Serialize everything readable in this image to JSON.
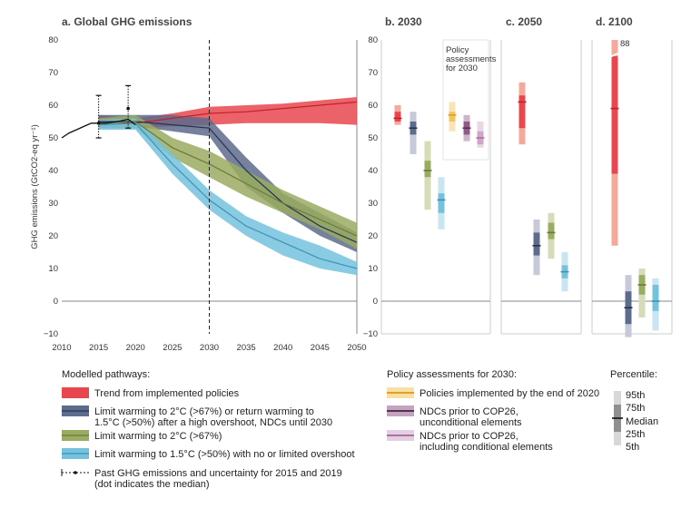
{
  "chart_data": {
    "type": "area",
    "colors": {
      "policies": "#e8474f",
      "policies_light": "#f5a99b",
      "overshoot": "#5d6b8c",
      "overshoot_light": "#c5c9d8",
      "c2": "#9aab62",
      "c2_light": "#d4dcb8",
      "c15": "#74c2dd",
      "c15_light": "#c8e6f1",
      "pol2020": "#f2c45e",
      "ndc_uncond": "#8e5b87",
      "ndc_cond": "#cfa6c8"
    },
    "panel_a": {
      "title": "a. Global GHG emissions",
      "ylabel": "GHG emissions (GtCO2-eq yr⁻¹)",
      "ylim": [
        -10,
        80
      ],
      "yticks": [
        "−10",
        "0",
        "10",
        "20",
        "30",
        "40",
        "50",
        "60",
        "70",
        "80"
      ],
      "xlim": [
        2010,
        2050
      ],
      "xticks": [
        "2010",
        "2015",
        "2020",
        "2025",
        "2030",
        "2035",
        "2040",
        "2045",
        "2050"
      ],
      "history": {
        "x": [
          2010,
          2011,
          2012,
          2013,
          2014,
          2015,
          2016,
          2017,
          2018,
          2019,
          2020
        ],
        "y": [
          50,
          51.5,
          52.5,
          53.5,
          54.5,
          54.5,
          54.5,
          54.8,
          55.2,
          55.7,
          54
        ]
      },
      "uncertainty": [
        {
          "year": 2015,
          "low": 50,
          "high": 63,
          "median": 54.5
        },
        {
          "year": 2019,
          "low": 53,
          "high": 66,
          "median": 59
        }
      ],
      "series": [
        {
          "key": "policies",
          "x": [
            2015,
            2020,
            2025,
            2030,
            2035,
            2040,
            2045,
            2050
          ],
          "median": [
            55,
            54.5,
            56,
            57.5,
            58,
            59,
            60,
            61
          ],
          "low": [
            53,
            53,
            53.5,
            54,
            54.5,
            54.5,
            54.5,
            54
          ],
          "high": [
            57,
            56,
            57.5,
            59.5,
            60,
            60.5,
            61.5,
            62.5
          ]
        },
        {
          "key": "overshoot",
          "x": [
            2015,
            2020,
            2025,
            2030,
            2035,
            2040,
            2045,
            2050
          ],
          "median": [
            55,
            55,
            54,
            53,
            40,
            30,
            23,
            18
          ],
          "low": [
            53,
            53.5,
            52,
            50.5,
            35,
            27,
            20,
            15
          ],
          "high": [
            57,
            57,
            57,
            56,
            44,
            33,
            27,
            21
          ]
        },
        {
          "key": "c2",
          "x": [
            2015,
            2020,
            2025,
            2030,
            2035,
            2040,
            2045,
            2050
          ],
          "median": [
            54.5,
            55,
            47,
            42,
            36,
            30,
            25,
            20
          ],
          "low": [
            53,
            53,
            44,
            38,
            32,
            27,
            22,
            16
          ],
          "high": [
            56,
            57,
            50,
            46,
            40,
            34,
            29,
            24
          ]
        },
        {
          "key": "c15",
          "x": [
            2015,
            2020,
            2025,
            2030,
            2035,
            2040,
            2045,
            2050
          ],
          "median": [
            54,
            54.5,
            42,
            31,
            23,
            18,
            13,
            10
          ],
          "low": [
            52.5,
            52.5,
            39,
            28,
            20,
            14,
            10,
            8
          ],
          "high": [
            55.5,
            56,
            45,
            34,
            26,
            21,
            17,
            12
          ]
        }
      ],
      "vline": 2030
    },
    "panel_b": {
      "title": "b. 2030",
      "ylim": [
        -10,
        80
      ],
      "yticks": [
        "−10",
        "0",
        "10",
        "20",
        "30",
        "40",
        "50",
        "60",
        "70",
        "80"
      ],
      "box_note": [
        "Policy",
        "assessments",
        "for 2030"
      ],
      "bars": [
        {
          "key": "policies",
          "p5": 54,
          "p25": 55,
          "median": 56,
          "p75": 58,
          "p95": 60
        },
        {
          "key": "overshoot",
          "p5": 45,
          "p25": 51,
          "median": 53,
          "p75": 55,
          "p95": 58
        },
        {
          "key": "c2",
          "p5": 28,
          "p25": 38,
          "median": 40,
          "p75": 43,
          "p95": 49
        },
        {
          "key": "c15",
          "p5": 22,
          "p25": 27,
          "median": 31,
          "p75": 33,
          "p95": 38
        },
        {
          "key": "pol2020",
          "p5": 52,
          "p25": 55,
          "median": 57,
          "p75": 58,
          "p95": 61
        },
        {
          "key": "ndc_uncond",
          "p5": 49,
          "p25": 51,
          "median": 53,
          "p75": 55,
          "p95": 57
        },
        {
          "key": "ndc_cond",
          "p5": 47,
          "p25": 48,
          "median": 50,
          "p75": 52,
          "p95": 55
        }
      ]
    },
    "panel_c": {
      "title": "c. 2050",
      "bars": [
        {
          "key": "policies",
          "p5": 48,
          "p25": 53,
          "median": 61,
          "p75": 63,
          "p95": 67
        },
        {
          "key": "overshoot",
          "p5": 8,
          "p25": 14,
          "median": 17,
          "p75": 21,
          "p95": 25
        },
        {
          "key": "c2",
          "p5": 13,
          "p25": 19,
          "median": 21,
          "p75": 24,
          "p95": 27
        },
        {
          "key": "c15",
          "p5": 3,
          "p25": 7,
          "median": 9,
          "p75": 11,
          "p95": 15
        }
      ]
    },
    "panel_d": {
      "title": "d. 2100",
      "break_label": "88",
      "bars": [
        {
          "key": "policies",
          "p5": 17,
          "p25": 39,
          "median": 59,
          "p75": 75,
          "p95": 88
        },
        {
          "key": "overshoot",
          "p5": -11,
          "p25": -7,
          "median": -2,
          "p75": 3,
          "p95": 8
        },
        {
          "key": "c2",
          "p5": -5,
          "p25": 2,
          "median": 5,
          "p75": 8,
          "p95": 10
        },
        {
          "key": "c15",
          "p5": -9,
          "p25": -3,
          "median": 0,
          "p75": 5,
          "p95": 7
        }
      ]
    },
    "legend_pathways": {
      "title": "Modelled pathways:",
      "items": [
        {
          "key": "policies",
          "lines": [
            "Trend from implemented policies"
          ]
        },
        {
          "key": "overshoot",
          "lines": [
            "Limit warming to 2°C (>67%) or return warming to",
            "1.5°C (>50%) after a high overshoot, NDCs until 2030"
          ]
        },
        {
          "key": "c2",
          "lines": [
            "Limit warming to 2°C (>67%)"
          ]
        },
        {
          "key": "c15",
          "lines": [
            "Limit warming to 1.5°C (>50%) with no or limited overshoot"
          ]
        }
      ],
      "history_lines": [
        "Past GHG emissions and uncertainty for 2015 and 2019",
        "(dot indicates the median)"
      ]
    },
    "legend_policy": {
      "title": "Policy assessments for 2030:",
      "items": [
        {
          "key": "pol2020",
          "lines": [
            "Policies implemented by the end of 2020"
          ]
        },
        {
          "key": "ndc_uncond",
          "lines": [
            "NDCs prior to COP26,",
            "unconditional elements"
          ]
        },
        {
          "key": "ndc_cond",
          "lines": [
            "NDCs prior to COP26,",
            "including conditional elements"
          ]
        }
      ]
    },
    "legend_percentile": {
      "title": "Percentile:",
      "labels": [
        "95th",
        "75th",
        "Median",
        "25th",
        "5th"
      ]
    }
  }
}
